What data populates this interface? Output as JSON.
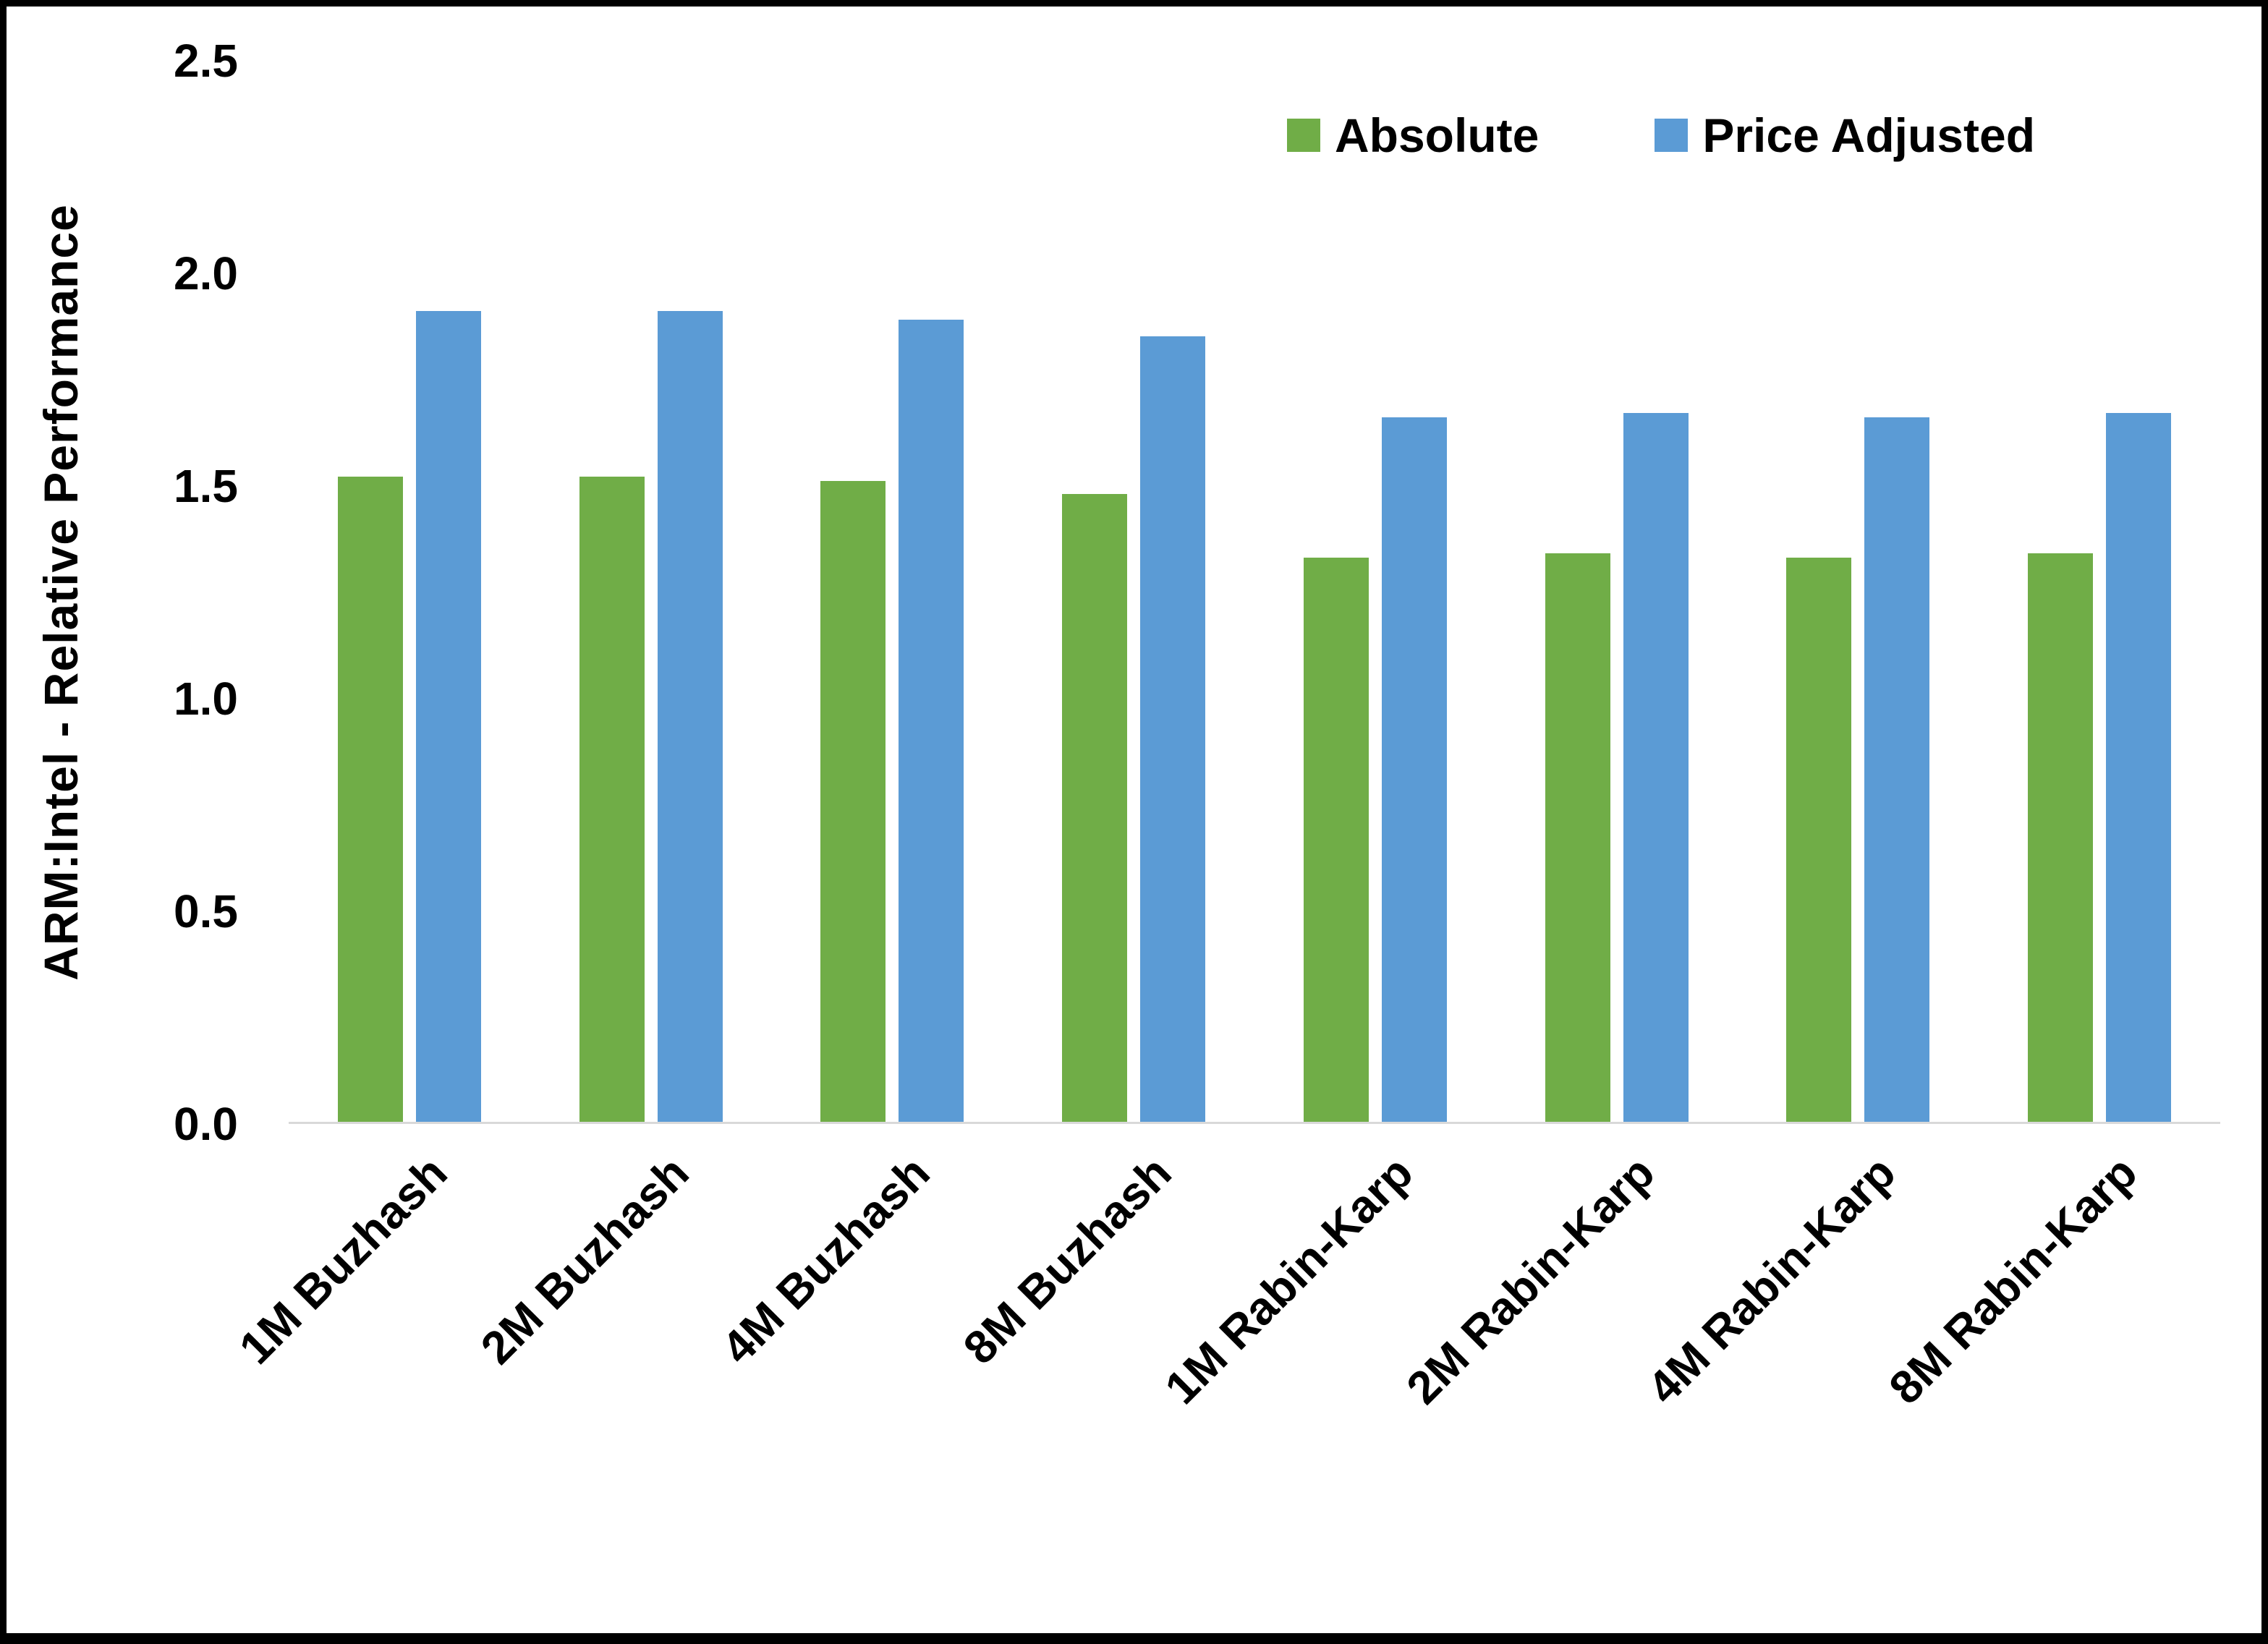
{
  "chart_data": {
    "type": "bar",
    "title": "",
    "xlabel": "",
    "ylabel": "ARM:Intel - Relative Performance",
    "ylim": [
      0,
      2.5
    ],
    "yticks": [
      "0.0",
      "0.5",
      "1.0",
      "1.5",
      "2.0",
      "2.5"
    ],
    "grid": false,
    "legend_position": "top-right",
    "categories": [
      "1M Buzhash",
      "2M Buzhash",
      "4M Buzhash",
      "8M Buzhash",
      "1M Rabin-Karp",
      "2M Rabin-Karp",
      "4M Rabin-Karp",
      "8M Rabin-Karp"
    ],
    "series": [
      {
        "name": "Absolute",
        "color": "#70AD47",
        "values": [
          1.52,
          1.52,
          1.51,
          1.48,
          1.33,
          1.34,
          1.33,
          1.34
        ]
      },
      {
        "name": "Price Adjusted",
        "color": "#5B9BD5",
        "values": [
          1.91,
          1.91,
          1.89,
          1.85,
          1.66,
          1.67,
          1.66,
          1.67
        ]
      }
    ],
    "colors": {
      "absolute_series": "#70AD47",
      "price_adjusted_series": "#5B9BD5",
      "axis_line": "#D9D9D9",
      "text": "#000000",
      "frame_border": "#000000"
    }
  }
}
